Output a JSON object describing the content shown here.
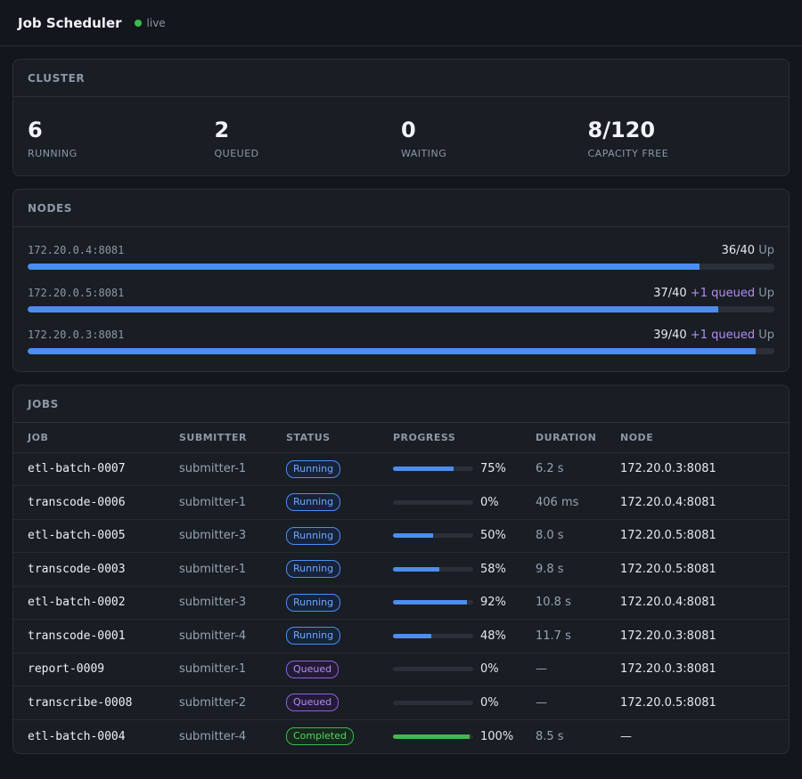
{
  "app": {
    "title": "Job Scheduler",
    "live_label": "live"
  },
  "cluster": {
    "heading": "CLUSTER",
    "stats": [
      {
        "value": "6",
        "label": "RUNNING"
      },
      {
        "value": "2",
        "label": "QUEUED"
      },
      {
        "value": "0",
        "label": "WAITING"
      },
      {
        "value": "8/120",
        "label": "CAPACITY FREE"
      }
    ]
  },
  "nodes": {
    "heading": "NODES",
    "items": [
      {
        "address": "172.20.0.4:8081",
        "count": "36/40",
        "queued": "",
        "state": "Up",
        "load": 0.9
      },
      {
        "address": "172.20.0.5:8081",
        "count": "37/40",
        "queued": "+1 queued",
        "state": "Up",
        "load": 0.925
      },
      {
        "address": "172.20.0.3:8081",
        "count": "39/40",
        "queued": "+1 queued",
        "state": "Up",
        "load": 0.975
      }
    ]
  },
  "jobs": {
    "heading": "JOBS",
    "columns": [
      "JOB",
      "SUBMITTER",
      "STATUS",
      "PROGRESS",
      "DURATION",
      "NODE"
    ],
    "rows": [
      {
        "job": "etl-batch-0007",
        "submitter": "submitter-1",
        "status": "Running",
        "progress": 75,
        "progress_label": "75%",
        "duration": "6.2 s",
        "node": "172.20.0.3:8081"
      },
      {
        "job": "transcode-0006",
        "submitter": "submitter-1",
        "status": "Running",
        "progress": 0,
        "progress_label": "0%",
        "duration": "406 ms",
        "node": "172.20.0.4:8081"
      },
      {
        "job": "etl-batch-0005",
        "submitter": "submitter-3",
        "status": "Running",
        "progress": 50,
        "progress_label": "50%",
        "duration": "8.0 s",
        "node": "172.20.0.5:8081"
      },
      {
        "job": "transcode-0003",
        "submitter": "submitter-1",
        "status": "Running",
        "progress": 58,
        "progress_label": "58%",
        "duration": "9.8 s",
        "node": "172.20.0.5:8081"
      },
      {
        "job": "etl-batch-0002",
        "submitter": "submitter-3",
        "status": "Running",
        "progress": 92,
        "progress_label": "92%",
        "duration": "10.8 s",
        "node": "172.20.0.4:8081"
      },
      {
        "job": "transcode-0001",
        "submitter": "submitter-4",
        "status": "Running",
        "progress": 48,
        "progress_label": "48%",
        "duration": "11.7 s",
        "node": "172.20.0.3:8081"
      },
      {
        "job": "report-0009",
        "submitter": "submitter-1",
        "status": "Queued",
        "progress": 0,
        "progress_label": "0%",
        "duration": "—",
        "node": "172.20.0.3:8081"
      },
      {
        "job": "transcribe-0008",
        "submitter": "submitter-2",
        "status": "Queued",
        "progress": 0,
        "progress_label": "0%",
        "duration": "—",
        "node": "172.20.0.5:8081"
      },
      {
        "job": "etl-batch-0004",
        "submitter": "submitter-4",
        "status": "Completed",
        "progress": 100,
        "progress_label": "100%",
        "duration": "8.5 s",
        "node": "—"
      }
    ]
  },
  "colors": {
    "running": "#4c8ef0",
    "queued": "#b48cf2",
    "completed": "#3fb950",
    "live": "#3fb950"
  }
}
